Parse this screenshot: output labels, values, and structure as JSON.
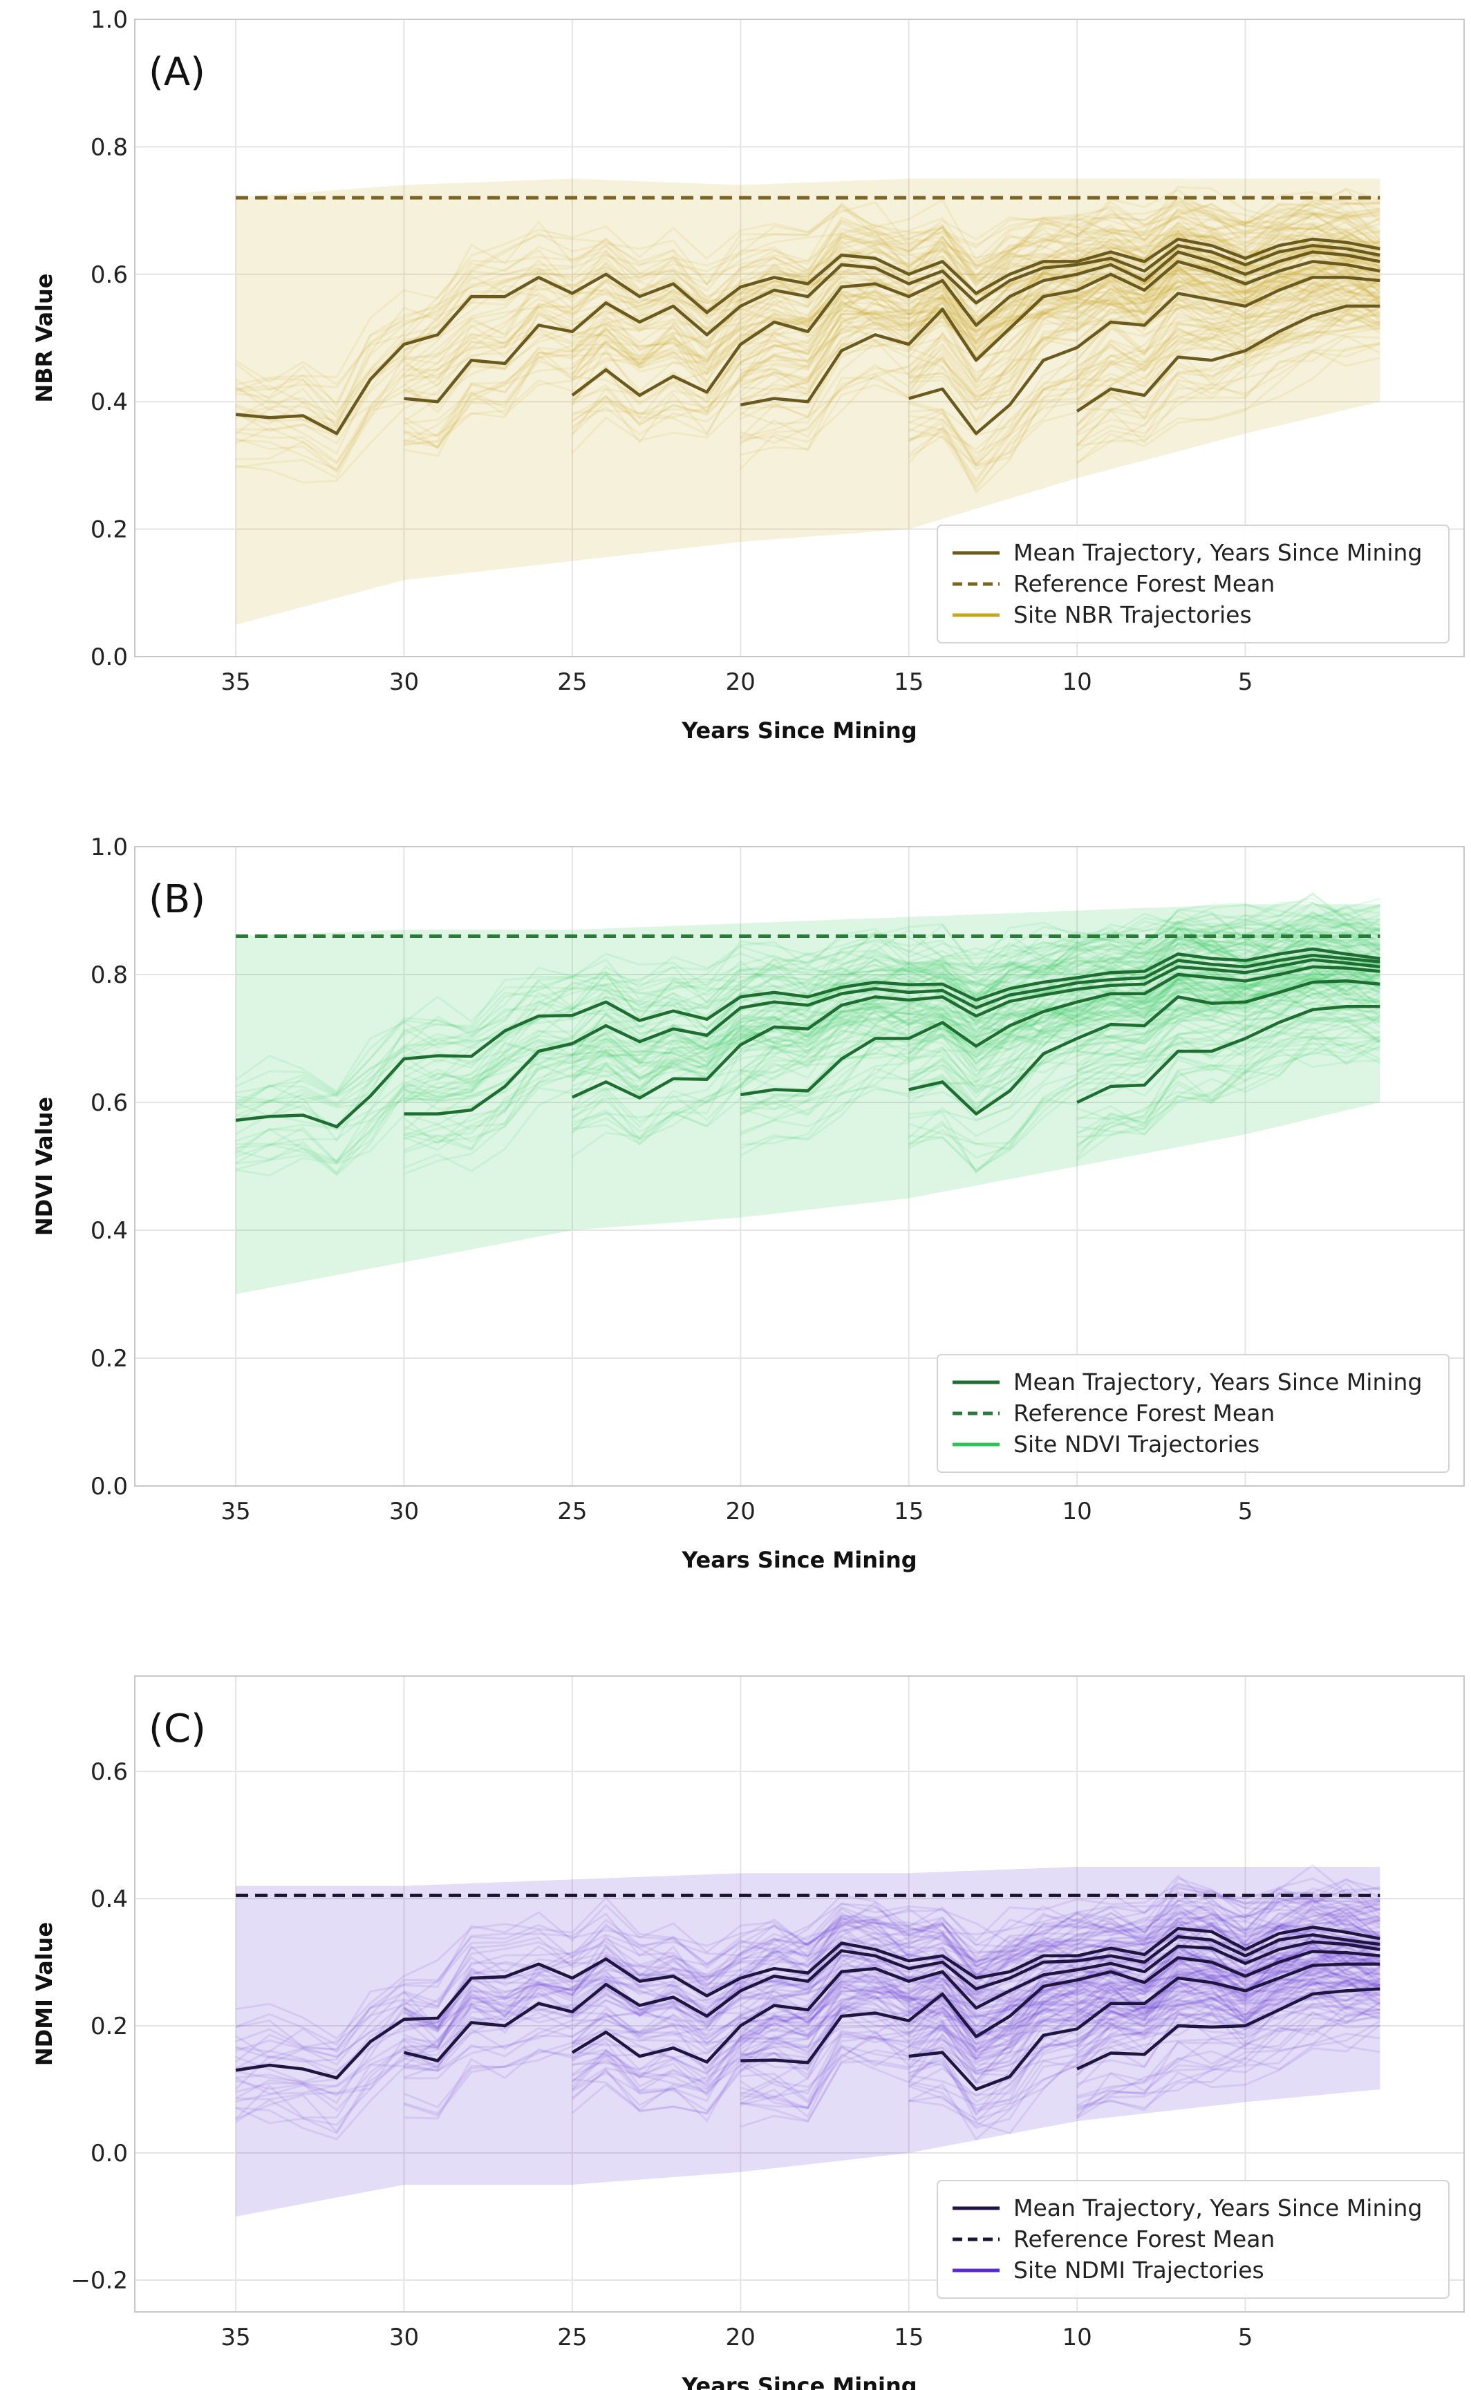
{
  "chart_data": [
    {
      "type": "line",
      "panel_label": "(A)",
      "xlabel": "Years Since Mining",
      "ylabel": "NBR Value",
      "xlim": [
        38,
        -1.5
      ],
      "ylim": [
        0.0,
        1.0
      ],
      "xticks": [
        35,
        30,
        25,
        20,
        15,
        10,
        5
      ],
      "yticks": [
        0.0,
        0.2,
        0.4,
        0.6,
        0.8,
        1.0
      ],
      "ytick_labels": [
        "0.0",
        "0.2",
        "0.4",
        "0.6",
        "0.8",
        "1.0"
      ],
      "grid": true,
      "legend_position": "lower-right",
      "colors": {
        "mean": "#6b5a1e",
        "reference": "#7a6420",
        "sites": "#c8a818"
      },
      "legend": [
        "Mean Trajectory, Years Since Mining",
        "Reference Forest Mean",
        "Site NBR Trajectories"
      ],
      "reference_mean": 0.72,
      "band": {
        "x": [
          35,
          30,
          25,
          20,
          15,
          10,
          5,
          1
        ],
        "upper": [
          0.72,
          0.74,
          0.75,
          0.74,
          0.75,
          0.75,
          0.75,
          0.75
        ],
        "lower": [
          0.05,
          0.12,
          0.15,
          0.18,
          0.2,
          0.28,
          0.35,
          0.4
        ]
      },
      "series": [
        {
          "x": [
            35,
            34,
            33,
            32,
            31,
            30,
            29,
            28,
            27,
            26,
            25,
            24,
            23,
            22,
            21,
            20,
            19,
            18,
            17,
            16,
            15,
            14,
            13,
            12,
            11,
            10,
            9,
            8,
            7,
            6,
            5,
            4,
            3,
            2,
            1
          ],
          "y": [
            0.38,
            0.375,
            0.378,
            0.35,
            0.435,
            0.49,
            0.505,
            0.565,
            0.565,
            0.595,
            0.57,
            0.6,
            0.565,
            0.585,
            0.54,
            0.58,
            0.595,
            0.585,
            0.63,
            0.625,
            0.6,
            0.62,
            0.57,
            0.6,
            0.62,
            0.62,
            0.635,
            0.62,
            0.655,
            0.645,
            0.625,
            0.645,
            0.655,
            0.65,
            0.64
          ]
        },
        {
          "x": [
            30,
            29,
            28,
            27,
            26,
            25,
            24,
            23,
            22,
            21,
            20,
            19,
            18,
            17,
            16,
            15,
            14,
            13,
            12,
            11,
            10,
            9,
            8,
            7,
            6,
            5,
            4,
            3,
            2,
            1
          ],
          "y": [
            0.405,
            0.4,
            0.465,
            0.46,
            0.52,
            0.51,
            0.555,
            0.525,
            0.55,
            0.505,
            0.55,
            0.575,
            0.565,
            0.615,
            0.61,
            0.585,
            0.605,
            0.555,
            0.59,
            0.61,
            0.615,
            0.625,
            0.605,
            0.645,
            0.635,
            0.615,
            0.635,
            0.645,
            0.64,
            0.63
          ]
        },
        {
          "x": [
            25,
            24,
            23,
            22,
            21,
            20,
            19,
            18,
            17,
            16,
            15,
            14,
            13,
            12,
            11,
            10,
            9,
            8,
            7,
            6,
            5,
            4,
            3,
            2,
            1
          ],
          "y": [
            0.41,
            0.45,
            0.41,
            0.44,
            0.415,
            0.49,
            0.525,
            0.51,
            0.58,
            0.585,
            0.565,
            0.59,
            0.52,
            0.565,
            0.59,
            0.6,
            0.615,
            0.59,
            0.635,
            0.62,
            0.6,
            0.62,
            0.635,
            0.63,
            0.62
          ]
        },
        {
          "x": [
            20,
            19,
            18,
            17,
            16,
            15,
            14,
            13,
            12,
            11,
            10,
            9,
            8,
            7,
            6,
            5,
            4,
            3,
            2,
            1
          ],
          "y": [
            0.395,
            0.405,
            0.4,
            0.48,
            0.505,
            0.49,
            0.545,
            0.465,
            0.515,
            0.565,
            0.575,
            0.6,
            0.575,
            0.62,
            0.605,
            0.585,
            0.605,
            0.62,
            0.615,
            0.605
          ]
        },
        {
          "x": [
            15,
            14,
            13,
            12,
            11,
            10,
            9,
            8,
            7,
            6,
            5,
            4,
            3,
            2,
            1
          ],
          "y": [
            0.405,
            0.42,
            0.35,
            0.395,
            0.465,
            0.485,
            0.525,
            0.52,
            0.57,
            0.56,
            0.55,
            0.575,
            0.595,
            0.595,
            0.59
          ]
        },
        {
          "x": [
            10,
            9,
            8,
            7,
            6,
            5,
            4,
            3,
            2,
            1
          ],
          "y": [
            0.385,
            0.42,
            0.41,
            0.47,
            0.465,
            0.48,
            0.51,
            0.535,
            0.55,
            0.55
          ]
        }
      ]
    },
    {
      "type": "line",
      "panel_label": "(B)",
      "xlabel": "Years Since Mining",
      "ylabel": "NDVI Value",
      "xlim": [
        38,
        -1.5
      ],
      "ylim": [
        0.0,
        1.0
      ],
      "xticks": [
        35,
        30,
        25,
        20,
        15,
        10,
        5
      ],
      "yticks": [
        0.0,
        0.2,
        0.4,
        0.6,
        0.8,
        1.0
      ],
      "ytick_labels": [
        "0.0",
        "0.2",
        "0.4",
        "0.6",
        "0.8",
        "1.0"
      ],
      "grid": true,
      "legend_position": "lower-right",
      "colors": {
        "mean": "#1e6e32",
        "reference": "#2a7a3a",
        "sites": "#2ec458"
      },
      "legend": [
        "Mean Trajectory, Years Since Mining",
        "Reference Forest Mean",
        "Site NDVI Trajectories"
      ],
      "reference_mean": 0.86,
      "band": {
        "x": [
          35,
          30,
          25,
          20,
          15,
          10,
          5,
          1
        ],
        "upper": [
          0.86,
          0.87,
          0.87,
          0.88,
          0.89,
          0.9,
          0.91,
          0.91
        ],
        "lower": [
          0.3,
          0.35,
          0.4,
          0.42,
          0.45,
          0.5,
          0.55,
          0.6
        ]
      },
      "series": [
        {
          "x": [
            35,
            34,
            33,
            32,
            31,
            30,
            29,
            28,
            27,
            26,
            25,
            24,
            23,
            22,
            21,
            20,
            19,
            18,
            17,
            16,
            15,
            14,
            13,
            12,
            11,
            10,
            9,
            8,
            7,
            6,
            5,
            4,
            3,
            2,
            1
          ],
          "y": [
            0.572,
            0.578,
            0.58,
            0.562,
            0.61,
            0.668,
            0.673,
            0.672,
            0.712,
            0.735,
            0.736,
            0.757,
            0.728,
            0.743,
            0.73,
            0.765,
            0.772,
            0.765,
            0.78,
            0.788,
            0.784,
            0.785,
            0.76,
            0.778,
            0.788,
            0.795,
            0.803,
            0.805,
            0.832,
            0.825,
            0.822,
            0.832,
            0.84,
            0.832,
            0.825
          ]
        },
        {
          "x": [
            30,
            29,
            28,
            27,
            26,
            25,
            24,
            23,
            22,
            21,
            20,
            19,
            18,
            17,
            16,
            15,
            14,
            13,
            12,
            11,
            10,
            9,
            8,
            7,
            6,
            5,
            4,
            3,
            2,
            1
          ],
          "y": [
            0.582,
            0.582,
            0.588,
            0.625,
            0.68,
            0.692,
            0.72,
            0.695,
            0.715,
            0.705,
            0.748,
            0.757,
            0.752,
            0.77,
            0.778,
            0.772,
            0.775,
            0.748,
            0.768,
            0.777,
            0.787,
            0.792,
            0.795,
            0.822,
            0.816,
            0.812,
            0.822,
            0.83,
            0.825,
            0.82
          ]
        },
        {
          "x": [
            25,
            24,
            23,
            22,
            21,
            20,
            19,
            18,
            17,
            16,
            15,
            14,
            13,
            12,
            11,
            10,
            9,
            8,
            7,
            6,
            5,
            4,
            3,
            2,
            1
          ],
          "y": [
            0.608,
            0.632,
            0.607,
            0.637,
            0.636,
            0.69,
            0.718,
            0.715,
            0.752,
            0.765,
            0.76,
            0.765,
            0.735,
            0.758,
            0.768,
            0.777,
            0.783,
            0.785,
            0.812,
            0.808,
            0.803,
            0.813,
            0.823,
            0.818,
            0.812
          ]
        },
        {
          "x": [
            20,
            19,
            18,
            17,
            16,
            15,
            14,
            13,
            12,
            11,
            10,
            9,
            8,
            7,
            6,
            5,
            4,
            3,
            2,
            1
          ],
          "y": [
            0.612,
            0.62,
            0.618,
            0.668,
            0.7,
            0.7,
            0.725,
            0.688,
            0.72,
            0.742,
            0.757,
            0.77,
            0.77,
            0.8,
            0.795,
            0.79,
            0.8,
            0.812,
            0.81,
            0.805
          ]
        },
        {
          "x": [
            15,
            14,
            13,
            12,
            11,
            10,
            9,
            8,
            7,
            6,
            5,
            4,
            3,
            2,
            1
          ],
          "y": [
            0.62,
            0.632,
            0.582,
            0.618,
            0.676,
            0.7,
            0.722,
            0.72,
            0.765,
            0.755,
            0.757,
            0.772,
            0.788,
            0.79,
            0.785
          ]
        },
        {
          "x": [
            10,
            9,
            8,
            7,
            6,
            5,
            4,
            3,
            2,
            1
          ],
          "y": [
            0.6,
            0.625,
            0.627,
            0.68,
            0.68,
            0.7,
            0.725,
            0.745,
            0.75,
            0.75
          ]
        }
      ]
    },
    {
      "type": "line",
      "panel_label": "(C)",
      "xlabel": "Years Since Mining",
      "ylabel": "NDMI Value",
      "xlim": [
        38,
        -1.5
      ],
      "ylim": [
        -0.25,
        0.75
      ],
      "xticks": [
        35,
        30,
        25,
        20,
        15,
        10,
        5
      ],
      "yticks": [
        -0.2,
        0.0,
        0.2,
        0.4,
        0.6
      ],
      "ytick_labels": [
        "−0.2",
        "0.0",
        "0.2",
        "0.4",
        "0.6"
      ],
      "grid": true,
      "legend_position": "lower-right",
      "colors": {
        "mean": "#1e1640",
        "reference": "#1a1430",
        "sites": "#5a2ad0"
      },
      "legend": [
        "Mean Trajectory, Years Since Mining",
        "Reference Forest Mean",
        "Site NDMI Trajectories"
      ],
      "reference_mean": 0.405,
      "band": {
        "x": [
          35,
          30,
          25,
          20,
          15,
          10,
          5,
          1
        ],
        "upper": [
          0.42,
          0.42,
          0.43,
          0.44,
          0.44,
          0.45,
          0.45,
          0.45
        ],
        "lower": [
          -0.1,
          -0.05,
          -0.05,
          -0.03,
          0.0,
          0.05,
          0.08,
          0.1
        ]
      },
      "series": [
        {
          "x": [
            35,
            34,
            33,
            32,
            31,
            30,
            29,
            28,
            27,
            26,
            25,
            24,
            23,
            22,
            21,
            20,
            19,
            18,
            17,
            16,
            15,
            14,
            13,
            12,
            11,
            10,
            9,
            8,
            7,
            6,
            5,
            4,
            3,
            2,
            1
          ],
          "y": [
            0.13,
            0.138,
            0.132,
            0.118,
            0.175,
            0.21,
            0.212,
            0.275,
            0.277,
            0.297,
            0.275,
            0.305,
            0.27,
            0.278,
            0.247,
            0.275,
            0.29,
            0.283,
            0.33,
            0.32,
            0.302,
            0.31,
            0.275,
            0.285,
            0.31,
            0.31,
            0.322,
            0.312,
            0.353,
            0.348,
            0.32,
            0.345,
            0.355,
            0.347,
            0.337
          ]
        },
        {
          "x": [
            30,
            29,
            28,
            27,
            26,
            25,
            24,
            23,
            22,
            21,
            20,
            19,
            18,
            17,
            16,
            15,
            14,
            13,
            12,
            11,
            10,
            9,
            8,
            7,
            6,
            5,
            4,
            3,
            2,
            1
          ],
          "y": [
            0.158,
            0.145,
            0.205,
            0.2,
            0.235,
            0.222,
            0.265,
            0.232,
            0.245,
            0.215,
            0.255,
            0.278,
            0.27,
            0.318,
            0.31,
            0.29,
            0.3,
            0.258,
            0.275,
            0.3,
            0.302,
            0.31,
            0.3,
            0.34,
            0.335,
            0.31,
            0.335,
            0.343,
            0.335,
            0.328
          ]
        },
        {
          "x": [
            25,
            24,
            23,
            22,
            21,
            20,
            19,
            18,
            17,
            16,
            15,
            14,
            13,
            12,
            11,
            10,
            9,
            8,
            7,
            6,
            5,
            4,
            3,
            2,
            1
          ],
          "y": [
            0.158,
            0.19,
            0.152,
            0.165,
            0.143,
            0.2,
            0.232,
            0.225,
            0.285,
            0.29,
            0.27,
            0.285,
            0.228,
            0.255,
            0.28,
            0.288,
            0.298,
            0.285,
            0.325,
            0.322,
            0.298,
            0.32,
            0.332,
            0.328,
            0.32
          ]
        },
        {
          "x": [
            20,
            19,
            18,
            17,
            16,
            15,
            14,
            13,
            12,
            11,
            10,
            9,
            8,
            7,
            6,
            5,
            4,
            3,
            2,
            1
          ],
          "y": [
            0.145,
            0.146,
            0.142,
            0.215,
            0.22,
            0.208,
            0.25,
            0.183,
            0.215,
            0.262,
            0.272,
            0.285,
            0.268,
            0.307,
            0.3,
            0.278,
            0.3,
            0.317,
            0.315,
            0.31
          ]
        },
        {
          "x": [
            15,
            14,
            13,
            12,
            11,
            10,
            9,
            8,
            7,
            6,
            5,
            4,
            3,
            2,
            1
          ],
          "y": [
            0.152,
            0.158,
            0.1,
            0.12,
            0.185,
            0.195,
            0.235,
            0.235,
            0.275,
            0.268,
            0.255,
            0.275,
            0.295,
            0.297,
            0.297
          ]
        },
        {
          "x": [
            10,
            9,
            8,
            7,
            6,
            5,
            4,
            3,
            2,
            1
          ],
          "y": [
            0.132,
            0.157,
            0.155,
            0.2,
            0.198,
            0.2,
            0.225,
            0.25,
            0.255,
            0.258
          ]
        }
      ]
    }
  ]
}
